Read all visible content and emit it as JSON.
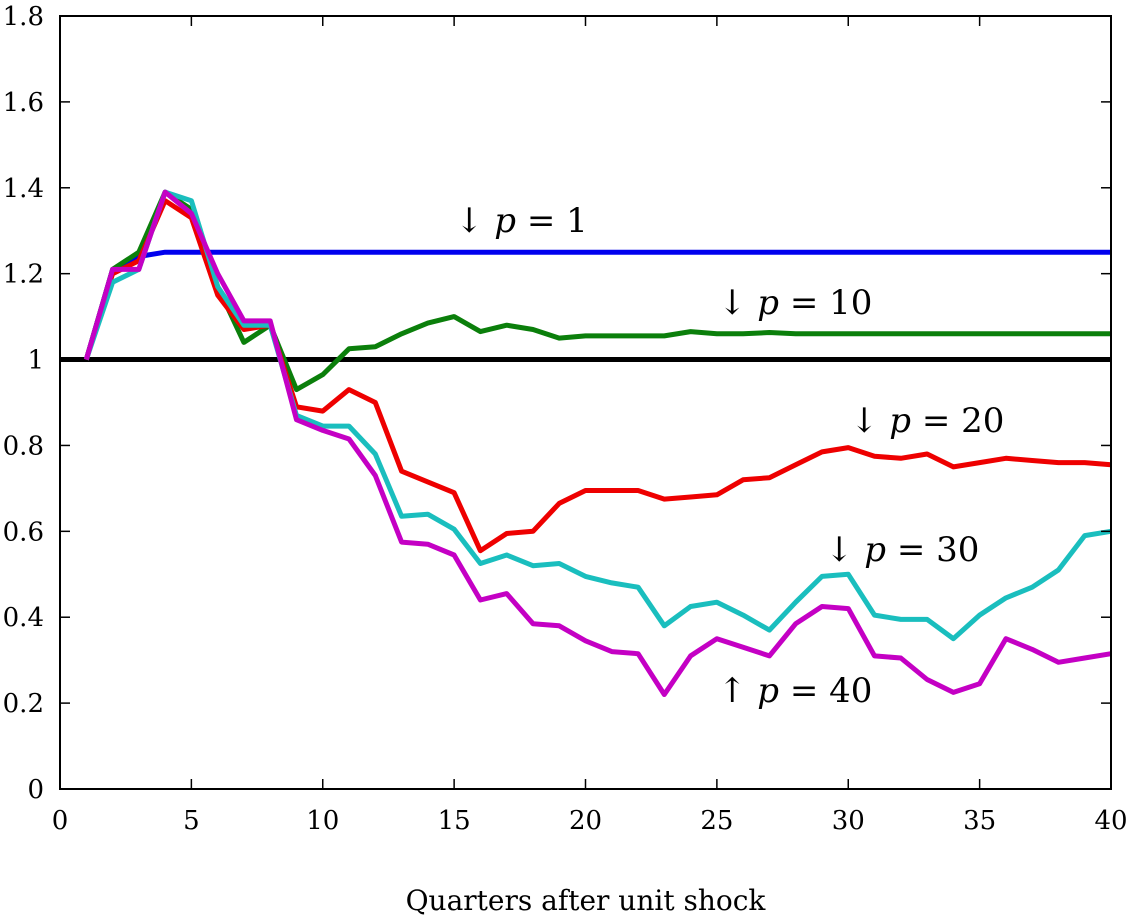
{
  "chart_data": {
    "type": "line",
    "title": "",
    "xlabel": "Quarters after unit shock",
    "ylabel": "",
    "xlim": [
      0,
      40
    ],
    "ylim": [
      0,
      1.8
    ],
    "x_ticks": [
      0,
      5,
      10,
      15,
      20,
      25,
      30,
      35,
      40
    ],
    "x_tick_labels": [
      "0",
      "5",
      "10",
      "15",
      "20",
      "25",
      "30",
      "35",
      "40"
    ],
    "y_ticks": [
      0,
      0.2,
      0.4,
      0.6,
      0.8,
      1,
      1.2,
      1.4,
      1.6,
      1.8
    ],
    "y_tick_labels": [
      "0",
      "0.2",
      "0.4",
      "0.6",
      "0.8",
      "1",
      "1.2",
      "1.4",
      "1.6",
      "1.8"
    ],
    "grid": false,
    "legend": "none",
    "reference_line": {
      "y": 1,
      "color": "#000000"
    },
    "x": [
      1,
      2,
      3,
      4,
      5,
      6,
      7,
      8,
      9,
      10,
      11,
      12,
      13,
      14,
      15,
      16,
      17,
      18,
      19,
      20,
      21,
      22,
      23,
      24,
      25,
      26,
      27,
      28,
      29,
      30,
      31,
      32,
      33,
      34,
      35,
      36,
      37,
      38,
      39,
      40
    ],
    "series": [
      {
        "color": "#0000ee",
        "label_text": "↓ p = 1",
        "label_arrow": "↓",
        "label_var": "p",
        "label_rest": " = 1",
        "values": [
          1.0,
          1.21,
          1.24,
          1.25,
          1.25,
          1.25,
          1.25,
          1.25,
          1.25,
          1.25,
          1.25,
          1.25,
          1.25,
          1.25,
          1.25,
          1.25,
          1.25,
          1.25,
          1.25,
          1.25,
          1.25,
          1.25,
          1.25,
          1.25,
          1.25,
          1.25,
          1.25,
          1.25,
          1.25,
          1.25,
          1.25,
          1.25,
          1.25,
          1.25,
          1.25,
          1.25,
          1.25,
          1.25,
          1.25,
          1.25
        ]
      },
      {
        "color": "#0b7f0b",
        "label_text": "↓ p = 10",
        "label_arrow": "↓",
        "label_var": "p",
        "label_rest": " = 10",
        "values": [
          1.0,
          1.21,
          1.25,
          1.39,
          1.35,
          1.17,
          1.04,
          1.08,
          0.93,
          0.965,
          1.025,
          1.03,
          1.06,
          1.085,
          1.1,
          1.065,
          1.08,
          1.07,
          1.05,
          1.055,
          1.055,
          1.055,
          1.055,
          1.065,
          1.06,
          1.06,
          1.063,
          1.06,
          1.06,
          1.06,
          1.06,
          1.06,
          1.06,
          1.06,
          1.06,
          1.06,
          1.06,
          1.06,
          1.06,
          1.06
        ]
      },
      {
        "color": "#ee0000",
        "label_text": "↓ p = 20",
        "label_arrow": "↓",
        "label_var": "p",
        "label_rest": " = 20",
        "values": [
          1.0,
          1.2,
          1.23,
          1.37,
          1.33,
          1.15,
          1.07,
          1.08,
          0.89,
          0.88,
          0.93,
          0.9,
          0.74,
          0.715,
          0.69,
          0.555,
          0.595,
          0.6,
          0.665,
          0.695,
          0.695,
          0.695,
          0.675,
          0.68,
          0.685,
          0.72,
          0.725,
          0.755,
          0.785,
          0.795,
          0.775,
          0.77,
          0.78,
          0.75,
          0.76,
          0.77,
          0.765,
          0.76,
          0.76,
          0.755
        ]
      },
      {
        "color": "#1abebe",
        "label_text": "↓ p = 30",
        "label_arrow": "↓",
        "label_var": "p",
        "label_rest": " = 30",
        "values": [
          1.0,
          1.18,
          1.21,
          1.39,
          1.37,
          1.17,
          1.08,
          1.08,
          0.87,
          0.845,
          0.845,
          0.78,
          0.635,
          0.64,
          0.605,
          0.525,
          0.545,
          0.52,
          0.525,
          0.495,
          0.48,
          0.47,
          0.38,
          0.425,
          0.435,
          0.405,
          0.37,
          0.435,
          0.495,
          0.5,
          0.405,
          0.395,
          0.395,
          0.35,
          0.405,
          0.445,
          0.47,
          0.51,
          0.59,
          0.6
        ]
      },
      {
        "color": "#c400c4",
        "label_text": "↑ p = 40",
        "label_arrow": "↑",
        "label_var": "p",
        "label_rest": " = 40",
        "values": [
          1.0,
          1.21,
          1.21,
          1.39,
          1.34,
          1.2,
          1.09,
          1.09,
          0.86,
          0.835,
          0.815,
          0.73,
          0.575,
          0.57,
          0.545,
          0.44,
          0.455,
          0.385,
          0.38,
          0.345,
          0.32,
          0.315,
          0.22,
          0.31,
          0.35,
          0.33,
          0.31,
          0.385,
          0.425,
          0.42,
          0.31,
          0.305,
          0.255,
          0.225,
          0.245,
          0.35,
          0.325,
          0.295,
          0.305,
          0.315
        ]
      }
    ]
  }
}
